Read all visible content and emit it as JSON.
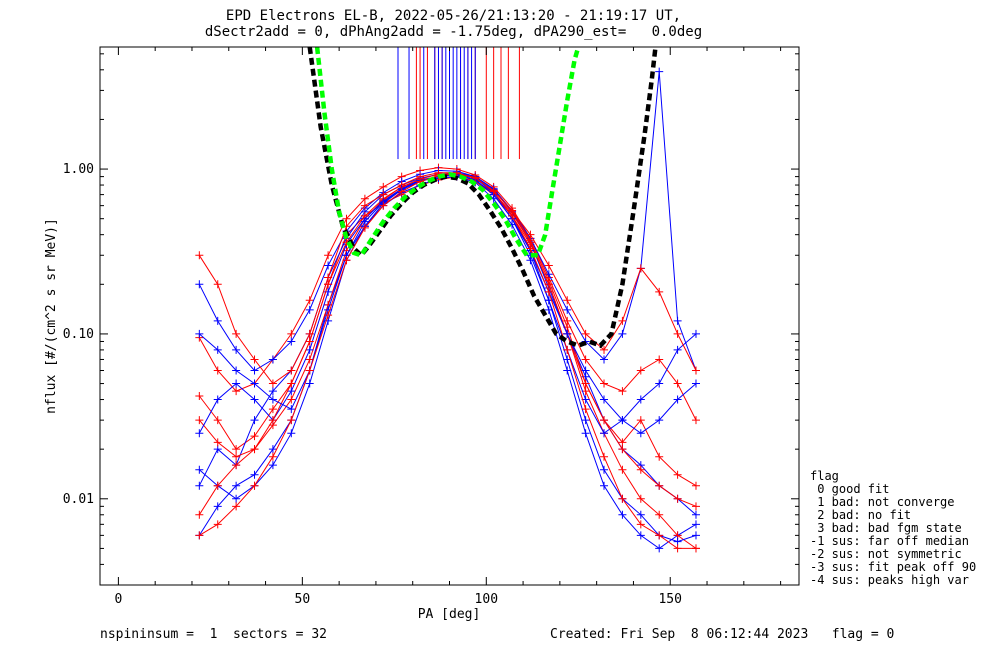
{
  "chart_data": {
    "type": "line",
    "title": "EPD Electrons EL-B, 2022-05-26/21:13:20 - 21:19:17 UT,",
    "subtitle": "dSectr2add = 0, dPhAng2add = -1.75deg, dPA290_est=   0.0deg",
    "xlabel": "PA [deg]",
    "ylabel": "nflux [#/(cm^2 s sr MeV)]",
    "x_range": [
      -5,
      185
    ],
    "y_range": [
      0.003,
      5.5
    ],
    "y_scale": "log",
    "x_ticks": [
      0,
      50,
      100,
      150
    ],
    "x_tick_labels": [
      "0",
      "50",
      "100",
      "150"
    ],
    "y_ticks": [
      0.01,
      0.1,
      1.0
    ],
    "y_tick_labels": [
      "0.01",
      "0.10",
      "1.00"
    ],
    "grid": false,
    "pa_sectors": [
      22,
      27,
      32,
      37,
      42,
      47,
      52,
      57,
      62,
      67,
      72,
      77,
      82,
      87,
      92,
      97,
      102,
      107,
      112,
      117,
      122,
      127,
      132,
      137,
      142,
      147,
      152,
      157
    ],
    "series": [
      {
        "color": "#ff0000",
        "values": [
          0.042,
          0.03,
          0.02,
          0.024,
          0.035,
          0.05,
          0.09,
          0.2,
          0.4,
          0.52,
          0.62,
          0.7,
          0.8,
          0.86,
          0.9,
          0.84,
          0.7,
          0.52,
          0.35,
          0.2,
          0.1,
          0.05,
          0.03,
          0.022,
          0.03,
          0.018,
          0.014,
          0.012
        ]
      },
      {
        "color": "#0000ff",
        "values": [
          0.012,
          0.02,
          0.016,
          0.03,
          0.045,
          0.06,
          0.1,
          0.22,
          0.38,
          0.55,
          0.7,
          0.8,
          0.88,
          0.93,
          0.95,
          0.9,
          0.75,
          0.55,
          0.36,
          0.19,
          0.1,
          0.055,
          0.03,
          0.02,
          0.016,
          0.012,
          0.01,
          0.008
        ]
      },
      {
        "color": "#ff0000",
        "values": [
          0.095,
          0.06,
          0.045,
          0.05,
          0.07,
          0.1,
          0.16,
          0.3,
          0.5,
          0.66,
          0.78,
          0.9,
          0.98,
          1.02,
          1.0,
          0.92,
          0.78,
          0.58,
          0.38,
          0.22,
          0.12,
          0.07,
          0.05,
          0.045,
          0.06,
          0.07,
          0.05,
          0.03
        ]
      },
      {
        "color": "#0000ff",
        "values": [
          0.006,
          0.009,
          0.012,
          0.014,
          0.02,
          0.03,
          0.06,
          0.15,
          0.3,
          0.45,
          0.6,
          0.72,
          0.8,
          0.88,
          0.9,
          0.83,
          0.66,
          0.46,
          0.28,
          0.14,
          0.06,
          0.025,
          0.012,
          0.008,
          0.006,
          0.005,
          0.006,
          0.007
        ]
      },
      {
        "color": "#0000ff",
        "values": [
          0.2,
          0.12,
          0.08,
          0.06,
          0.07,
          0.09,
          0.14,
          0.26,
          0.42,
          0.58,
          0.72,
          0.84,
          0.93,
          0.98,
          0.97,
          0.9,
          0.76,
          0.56,
          0.38,
          0.23,
          0.14,
          0.09,
          0.07,
          0.1,
          0.25,
          3.9,
          0.12,
          0.06
        ]
      },
      {
        "color": "#ff0000",
        "values": [
          0.03,
          0.022,
          0.018,
          0.02,
          0.028,
          0.04,
          0.07,
          0.15,
          0.32,
          0.5,
          0.65,
          0.78,
          0.85,
          0.9,
          0.92,
          0.85,
          0.72,
          0.54,
          0.36,
          0.2,
          0.1,
          0.045,
          0.025,
          0.015,
          0.01,
          0.008,
          0.006,
          0.005
        ]
      },
      {
        "color": "#0000ff",
        "values": [
          0.025,
          0.04,
          0.05,
          0.04,
          0.03,
          0.045,
          0.08,
          0.18,
          0.35,
          0.5,
          0.64,
          0.76,
          0.86,
          0.9,
          0.92,
          0.86,
          0.7,
          0.5,
          0.3,
          0.16,
          0.08,
          0.04,
          0.025,
          0.03,
          0.04,
          0.05,
          0.08,
          0.1
        ]
      },
      {
        "color": "#ff0000",
        "values": [
          0.3,
          0.2,
          0.1,
          0.07,
          0.05,
          0.06,
          0.1,
          0.22,
          0.45,
          0.6,
          0.7,
          0.8,
          0.9,
          0.95,
          0.95,
          0.88,
          0.74,
          0.56,
          0.4,
          0.26,
          0.16,
          0.1,
          0.08,
          0.12,
          0.25,
          0.18,
          0.1,
          0.06
        ]
      },
      {
        "color": "#0000ff",
        "values": [
          0.015,
          0.012,
          0.01,
          0.012,
          0.016,
          0.025,
          0.05,
          0.12,
          0.28,
          0.45,
          0.62,
          0.75,
          0.84,
          0.9,
          0.93,
          0.88,
          0.72,
          0.52,
          0.32,
          0.16,
          0.07,
          0.03,
          0.015,
          0.01,
          0.008,
          0.006,
          0.0055,
          0.006
        ]
      },
      {
        "color": "#ff0000",
        "values": [
          0.008,
          0.012,
          0.016,
          0.02,
          0.03,
          0.05,
          0.09,
          0.2,
          0.36,
          0.52,
          0.66,
          0.78,
          0.87,
          0.93,
          0.94,
          0.88,
          0.74,
          0.56,
          0.37,
          0.21,
          0.11,
          0.05,
          0.03,
          0.02,
          0.015,
          0.012,
          0.01,
          0.009
        ]
      },
      {
        "color": "#0000ff",
        "values": [
          0.1,
          0.08,
          0.06,
          0.05,
          0.04,
          0.035,
          0.06,
          0.14,
          0.3,
          0.48,
          0.63,
          0.76,
          0.85,
          0.9,
          0.93,
          0.86,
          0.7,
          0.5,
          0.32,
          0.18,
          0.1,
          0.06,
          0.04,
          0.03,
          0.025,
          0.03,
          0.04,
          0.05
        ]
      },
      {
        "color": "#ff0000",
        "values": [
          0.006,
          0.007,
          0.009,
          0.012,
          0.018,
          0.03,
          0.06,
          0.13,
          0.28,
          0.44,
          0.6,
          0.73,
          0.84,
          0.91,
          0.94,
          0.89,
          0.73,
          0.52,
          0.33,
          0.18,
          0.08,
          0.035,
          0.018,
          0.01,
          0.007,
          0.006,
          0.005,
          0.005
        ]
      }
    ],
    "saturated_lines": {
      "red_x": [
        81,
        82,
        84,
        86,
        88,
        90,
        93,
        95,
        97,
        100,
        102,
        104,
        106,
        109
      ],
      "blue_x": [
        76,
        79,
        83,
        86,
        87,
        88,
        89,
        90,
        91,
        92,
        93,
        94,
        95,
        96,
        97
      ],
      "floor": 1.15
    },
    "fits": [
      {
        "color": "#000000",
        "x": [
          52,
          55,
          58,
          61,
          64,
          66,
          68,
          71,
          74,
          77,
          80,
          83,
          86,
          89,
          92,
          95,
          98,
          101,
          104,
          107,
          110,
          113,
          116,
          119,
          122,
          125,
          128,
          131,
          134,
          137,
          140,
          143,
          145,
          146
        ],
        "y": [
          5.5,
          1.8,
          0.8,
          0.45,
          0.33,
          0.3,
          0.34,
          0.42,
          0.52,
          0.62,
          0.72,
          0.8,
          0.86,
          0.9,
          0.88,
          0.82,
          0.7,
          0.56,
          0.44,
          0.33,
          0.24,
          0.17,
          0.13,
          0.1,
          0.09,
          0.085,
          0.09,
          0.085,
          0.1,
          0.2,
          0.55,
          1.6,
          3.5,
          5.5
        ]
      },
      {
        "color": "#00ff00",
        "x": [
          54,
          56,
          58,
          60,
          62,
          64,
          66,
          69,
          72,
          75,
          78,
          81,
          84,
          87,
          90,
          93,
          96,
          99,
          102,
          105,
          108,
          111,
          114,
          116,
          118,
          120,
          122,
          124,
          125
        ],
        "y": [
          5.5,
          2.2,
          1.0,
          0.55,
          0.38,
          0.31,
          0.3,
          0.38,
          0.48,
          0.58,
          0.68,
          0.77,
          0.84,
          0.9,
          0.93,
          0.9,
          0.84,
          0.75,
          0.62,
          0.5,
          0.38,
          0.3,
          0.3,
          0.4,
          0.75,
          1.4,
          2.6,
          4.6,
          5.5
        ]
      }
    ]
  },
  "legend": {
    "title": "flag",
    "items": [
      " 0 good fit",
      " 1 bad: not converge",
      " 2 bad: no fit",
      " 3 bad: bad fgm state",
      "-1 sus: far off median",
      "-2 sus: not symmetric",
      "-3 sus: fit peak off 90",
      "-4 sus: peaks high var"
    ]
  },
  "footer": {
    "left": "nspininsum =  1  sectors = 32",
    "right": "Created: Fri Sep  8 06:12:44 2023   flag = 0"
  }
}
